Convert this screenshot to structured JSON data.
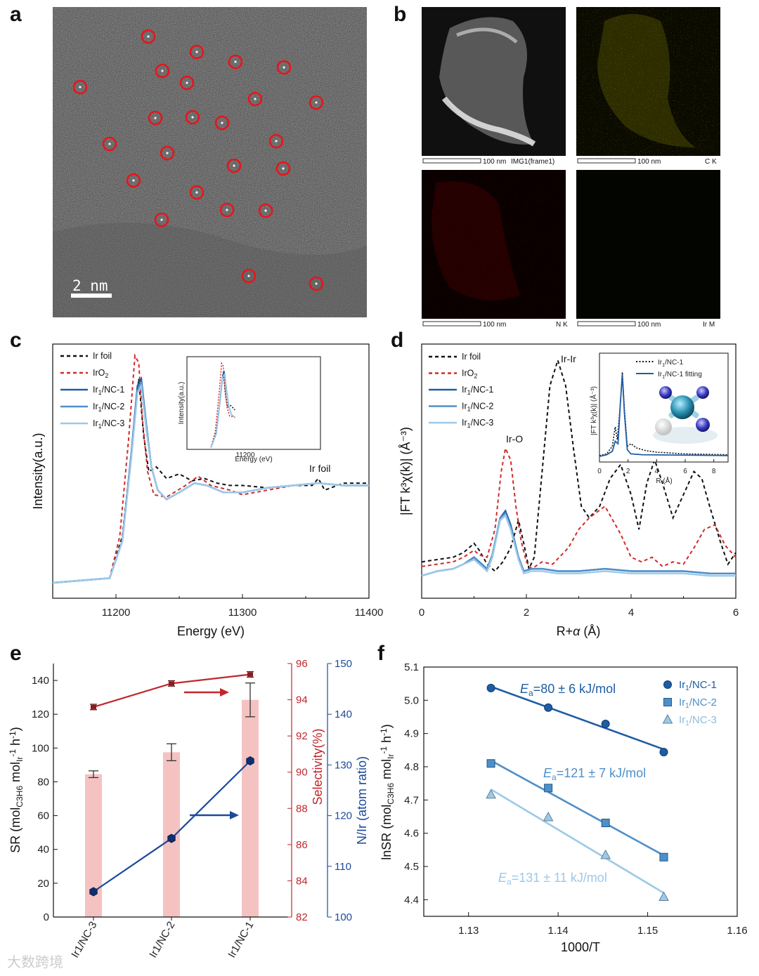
{
  "figure": {
    "panel_labels": [
      "a",
      "b",
      "c",
      "d",
      "e",
      "f"
    ],
    "watermark": "大数跨境"
  },
  "panel_a": {
    "scale_bar": "2 nm",
    "circle_count": 24
  },
  "panel_b": {
    "tiles": [
      {
        "scale": "100 nm",
        "label": "IMG1(frame1)"
      },
      {
        "scale": "100 nm",
        "label": "C K"
      },
      {
        "scale": "100 nm",
        "label": "N K"
      },
      {
        "scale": "100 nm",
        "label": "Ir M"
      }
    ]
  },
  "colors": {
    "ir_foil": "#111111",
    "iro2": "#d02b2b",
    "nc1": "#1f5da3",
    "nc2": "#4f8fc9",
    "nc3": "#9cc9e8",
    "sel_line": "#c0272d",
    "nir_line": "#1b4a9a",
    "bar_fill": "#f5c2c2"
  },
  "chart_data": [
    {
      "panel": "c",
      "type": "line",
      "xlabel": "Energy (eV)",
      "ylabel": "Intensity(a.u.)",
      "xlim": [
        11150,
        11400
      ],
      "xticks": [
        "11200",
        "11300",
        "11400"
      ],
      "annotation": "Ir foil",
      "legend": [
        {
          "name": "Ir foil",
          "style": "dashed",
          "color": "#111111"
        },
        {
          "name_main": "IrO",
          "name_sub": "2",
          "style": "dashed",
          "color": "#d02b2b"
        },
        {
          "name_main": "Ir",
          "name_sub": "1",
          "name_rest": "/NC-1",
          "style": "solid",
          "color": "#1f5da3"
        },
        {
          "name_main": "Ir",
          "name_sub": "1",
          "name_rest": "/NC-2",
          "style": "solid",
          "color": "#4f8fc9"
        },
        {
          "name_main": "Ir",
          "name_sub": "1",
          "name_rest": "/NC-3",
          "style": "solid",
          "color": "#9cc9e8"
        }
      ],
      "series": [
        {
          "name": "Ir foil",
          "x": [
            11150,
            11195,
            11205,
            11212,
            11218,
            11222,
            11226,
            11232,
            11240,
            11250,
            11260,
            11270,
            11280,
            11290,
            11300,
            11320,
            11340,
            11355,
            11360,
            11365,
            11380,
            11400
          ],
          "y": [
            0.0,
            0.02,
            0.2,
            0.55,
            0.88,
            0.63,
            0.48,
            0.5,
            0.45,
            0.47,
            0.44,
            0.45,
            0.43,
            0.42,
            0.42,
            0.41,
            0.42,
            0.42,
            0.45,
            0.4,
            0.43,
            0.43
          ]
        },
        {
          "name": "IrO2",
          "x": [
            11150,
            11195,
            11203,
            11210,
            11215,
            11218,
            11221,
            11225,
            11230,
            11240,
            11255,
            11265,
            11275,
            11290,
            11300,
            11320,
            11340,
            11360,
            11380,
            11400
          ],
          "y": [
            0.0,
            0.02,
            0.2,
            0.62,
            0.98,
            0.95,
            0.7,
            0.48,
            0.38,
            0.37,
            0.42,
            0.46,
            0.42,
            0.4,
            0.38,
            0.4,
            0.42,
            0.43,
            0.42,
            0.42
          ]
        },
        {
          "name": "Ir1/NC-1",
          "x": [
            11150,
            11195,
            11205,
            11212,
            11217,
            11220,
            11224,
            11228,
            11233,
            11240,
            11250,
            11262,
            11272,
            11285,
            11300,
            11320,
            11340,
            11360,
            11380,
            11400
          ],
          "y": [
            0.0,
            0.02,
            0.18,
            0.55,
            0.85,
            0.88,
            0.68,
            0.5,
            0.4,
            0.36,
            0.39,
            0.43,
            0.42,
            0.39,
            0.39,
            0.41,
            0.42,
            0.43,
            0.42,
            0.42
          ]
        },
        {
          "name": "Ir1/NC-2",
          "x": [
            11150,
            11195,
            11205,
            11212,
            11217,
            11220,
            11224,
            11228,
            11233,
            11240,
            11250,
            11262,
            11272,
            11285,
            11300,
            11320,
            11340,
            11360,
            11380,
            11400
          ],
          "y": [
            0.0,
            0.02,
            0.18,
            0.54,
            0.83,
            0.86,
            0.67,
            0.5,
            0.4,
            0.36,
            0.39,
            0.43,
            0.42,
            0.39,
            0.39,
            0.41,
            0.42,
            0.43,
            0.42,
            0.42
          ]
        },
        {
          "name": "Ir1/NC-3",
          "x": [
            11150,
            11195,
            11205,
            11212,
            11217,
            11220,
            11224,
            11228,
            11233,
            11240,
            11250,
            11262,
            11272,
            11285,
            11300,
            11320,
            11340,
            11360,
            11380,
            11400
          ],
          "y": [
            0.0,
            0.02,
            0.18,
            0.53,
            0.82,
            0.85,
            0.66,
            0.5,
            0.4,
            0.36,
            0.39,
            0.43,
            0.42,
            0.39,
            0.39,
            0.41,
            0.42,
            0.43,
            0.42,
            0.42
          ]
        }
      ],
      "inset": {
        "xlabel": "Energy (eV)",
        "ylabel": "Intensity(a.u.)",
        "xtick": "11200"
      }
    },
    {
      "panel": "d",
      "type": "line",
      "xlabel_main": "R+",
      "xlabel_greek": "α",
      "xlabel_unit": " (Å)",
      "ylabel": "|FT k³χ(k)| (Å⁻³)",
      "xlim": [
        0,
        6
      ],
      "xticks": [
        "0",
        "2",
        "4",
        "6"
      ],
      "annotations": [
        "Ir-O",
        "Ir-Ir"
      ],
      "legend": [
        {
          "name": "Ir foil",
          "style": "dashed",
          "color": "#111111"
        },
        {
          "name_main": "IrO",
          "name_sub": "2",
          "style": "dashed",
          "color": "#d02b2b"
        },
        {
          "name_main": "Ir",
          "name_sub": "1",
          "name_rest": "/NC-1",
          "style": "solid",
          "color": "#1f5da3"
        },
        {
          "name_main": "Ir",
          "name_sub": "1",
          "name_rest": "/NC-2",
          "style": "solid",
          "color": "#4f8fc9"
        },
        {
          "name_main": "Ir",
          "name_sub": "1",
          "name_rest": "/NC-3",
          "style": "solid",
          "color": "#9cc9e8"
        }
      ],
      "series": [
        {
          "name": "Ir foil",
          "x": [
            0,
            0.3,
            0.6,
            0.8,
            1.0,
            1.1,
            1.25,
            1.4,
            1.55,
            1.7,
            1.85,
            1.95,
            2.05,
            2.15,
            2.3,
            2.45,
            2.6,
            2.75,
            2.9,
            3.05,
            3.2,
            3.4,
            3.6,
            3.8,
            4.0,
            4.15,
            4.3,
            4.45,
            4.6,
            4.8,
            5.0,
            5.2,
            5.35,
            5.5,
            5.7,
            5.85,
            6.0
          ],
          "y": [
            0.06,
            0.07,
            0.08,
            0.1,
            0.14,
            0.11,
            0.05,
            0.02,
            0.06,
            0.12,
            0.24,
            0.14,
            0.03,
            0.08,
            0.45,
            0.82,
            0.93,
            0.82,
            0.55,
            0.3,
            0.25,
            0.3,
            0.42,
            0.48,
            0.35,
            0.2,
            0.4,
            0.5,
            0.4,
            0.25,
            0.35,
            0.45,
            0.42,
            0.3,
            0.15,
            0.05,
            0.1
          ]
        },
        {
          "name": "IrO2",
          "x": [
            0,
            0.3,
            0.6,
            0.8,
            1.0,
            1.1,
            1.25,
            1.4,
            1.52,
            1.6,
            1.7,
            1.8,
            1.9,
            2.0,
            2.1,
            2.3,
            2.5,
            2.8,
            3.0,
            3.2,
            3.5,
            3.8,
            4.0,
            4.2,
            4.4,
            4.6,
            4.8,
            5.0,
            5.2,
            5.4,
            5.6,
            5.8,
            6.0
          ],
          "y": [
            0.04,
            0.05,
            0.06,
            0.08,
            0.11,
            0.09,
            0.08,
            0.2,
            0.45,
            0.55,
            0.5,
            0.3,
            0.15,
            0.06,
            0.03,
            0.06,
            0.05,
            0.12,
            0.2,
            0.25,
            0.3,
            0.18,
            0.08,
            0.06,
            0.08,
            0.04,
            0.06,
            0.05,
            0.12,
            0.2,
            0.22,
            0.13,
            0.08
          ]
        },
        {
          "name": "Ir1/NC-1",
          "x": [
            0,
            0.3,
            0.6,
            0.8,
            1.0,
            1.1,
            1.25,
            1.35,
            1.5,
            1.6,
            1.7,
            1.85,
            1.95,
            2.1,
            2.3,
            2.6,
            3.0,
            3.5,
            4.0,
            4.5,
            5.0,
            5.5,
            6.0
          ],
          "y": [
            0.0,
            0.02,
            0.03,
            0.05,
            0.08,
            0.06,
            0.03,
            0.09,
            0.25,
            0.28,
            0.22,
            0.08,
            0.02,
            0.03,
            0.03,
            0.02,
            0.02,
            0.03,
            0.02,
            0.02,
            0.02,
            0.01,
            0.01
          ]
        },
        {
          "name": "Ir1/NC-2",
          "x": [
            0,
            0.3,
            0.6,
            0.8,
            1.0,
            1.1,
            1.25,
            1.35,
            1.5,
            1.6,
            1.7,
            1.85,
            1.95,
            2.1,
            2.3,
            2.6,
            3.0,
            3.5,
            4.0,
            4.5,
            5.0,
            5.5,
            6.0
          ],
          "y": [
            0.0,
            0.02,
            0.03,
            0.05,
            0.08,
            0.06,
            0.03,
            0.09,
            0.25,
            0.27,
            0.21,
            0.08,
            0.02,
            0.03,
            0.03,
            0.02,
            0.02,
            0.03,
            0.02,
            0.02,
            0.02,
            0.01,
            0.01
          ]
        },
        {
          "name": "Ir1/NC-3",
          "x": [
            0,
            0.3,
            0.6,
            0.8,
            1.0,
            1.1,
            1.25,
            1.35,
            1.5,
            1.6,
            1.7,
            1.85,
            1.95,
            2.1,
            2.3,
            2.6,
            3.0,
            3.5,
            4.0,
            4.5,
            5.0,
            5.5,
            6.0
          ],
          "y": [
            0.0,
            0.02,
            0.03,
            0.05,
            0.07,
            0.05,
            0.02,
            0.08,
            0.24,
            0.26,
            0.2,
            0.07,
            0.01,
            0.02,
            0.02,
            0.01,
            0.01,
            0.02,
            0.01,
            0.01,
            0.01,
            0.0,
            0.0
          ]
        }
      ],
      "inset": {
        "xlabel": "R (Å)",
        "ylabel": "|FT k³χ(k)| (Å⁻³)",
        "xlim": [
          0,
          9
        ],
        "xticks": [
          "0",
          "2",
          "4",
          "6",
          "8"
        ],
        "legend": [
          {
            "name_main": "Ir",
            "name_sub": "1",
            "name_rest": "/NC-1",
            "style": "dotted"
          },
          {
            "name_main": "Ir",
            "name_sub": "1",
            "name_rest": "/NC-1 fitting",
            "style": "solid"
          }
        ]
      }
    },
    {
      "panel": "e",
      "type": "bar",
      "categories": [
        "Ir1/NC-3",
        "Ir1/NC-2",
        "Ir1/NC-1"
      ],
      "bar_values": [
        84.5,
        97.5,
        128.5
      ],
      "bar_errors": [
        2,
        5,
        10
      ],
      "ylabel_left": "SR (mol",
      "ylabel_left_sub1": "C3H6",
      "ylabel_left_mid": " mol",
      "ylabel_left_sub2": "Ir",
      "ylabel_left_sup1": "-1",
      "ylabel_left_h": " h",
      "ylabel_left_sup2": "-1",
      "ylabel_left_end": ")",
      "ylim_left": [
        0,
        150
      ],
      "yticks_left": [
        "0",
        "20",
        "40",
        "60",
        "80",
        "100",
        "120",
        "140"
      ],
      "selectivity": {
        "values": [
          93.6,
          94.9,
          95.4
        ],
        "errors": [
          0.15,
          0.15,
          0.15
        ],
        "ylabel": "Selectivity(%)",
        "ylim": [
          82,
          96
        ],
        "yticks": [
          "82",
          "84",
          "86",
          "88",
          "90",
          "92",
          "94",
          "96"
        ]
      },
      "nir": {
        "values": [
          105,
          115.5,
          130.8
        ],
        "ylabel": "N/Ir (atom ratio)",
        "ylim": [
          100,
          150
        ],
        "yticks": [
          "100",
          "110",
          "120",
          "130",
          "140",
          "150"
        ]
      }
    },
    {
      "panel": "f",
      "type": "scatter",
      "xlabel": "1000/T",
      "ylabel_main": "lnSR (mol",
      "ylabel_sub1": "C3H6",
      "ylabel_mid": " mol",
      "ylabel_sub2": "Ir",
      "ylabel_sup1": "-1",
      "ylabel_h": " h",
      "ylabel_sup2": "-1",
      "ylabel_end": ")",
      "xlim": [
        1.125,
        1.16
      ],
      "ylim": [
        4.35,
        5.1
      ],
      "xticks": [
        "1.13",
        "1.14",
        "1.15",
        "1.16"
      ],
      "yticks": [
        "4.4",
        "4.5",
        "4.6",
        "4.7",
        "4.8",
        "4.9",
        "5.0",
        "5.1"
      ],
      "series": [
        {
          "name_main": "Ir",
          "name_sub": "1",
          "name_rest": "/NC-1",
          "marker": "circle",
          "color": "#1f5da3",
          "x": [
            1.1325,
            1.1389,
            1.1453,
            1.1518
          ],
          "y": [
            5.037,
            4.978,
            4.929,
            4.844
          ],
          "ea_main": "E",
          "ea_sub": "a",
          "ea_rest": "=80 ± 6 kJ/mol"
        },
        {
          "name_main": "Ir",
          "name_sub": "1",
          "name_rest": "/NC-2",
          "marker": "square",
          "color": "#4f8fc9",
          "x": [
            1.1325,
            1.1389,
            1.1453,
            1.1518
          ],
          "y": [
            4.81,
            4.736,
            4.631,
            4.528
          ],
          "ea_main": "E",
          "ea_sub": "a",
          "ea_rest": "=121 ± 7 kJ/mol"
        },
        {
          "name_main": "Ir",
          "name_sub": "1",
          "name_rest": "/NC-3",
          "marker": "triangle",
          "color": "#9cc9e8",
          "x": [
            1.1325,
            1.1389,
            1.1453,
            1.1518
          ],
          "y": [
            4.716,
            4.648,
            4.534,
            4.408
          ],
          "ea_main": "E",
          "ea_sub": "a",
          "ea_rest": "=131 ± 11 kJ/mol"
        }
      ]
    }
  ]
}
